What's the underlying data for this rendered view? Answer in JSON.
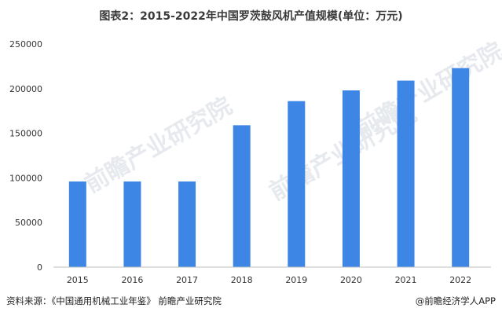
{
  "title": "图表2：2015-2022年中国罗茨鼓风机产值规模(单位：万元)",
  "footer": {
    "source": "资料来源：《中国通用机械工业年鉴》 前瞻产业研究院",
    "credit": "@前瞻经济学人APP"
  },
  "watermark": {
    "text": "前瞻产业研究院"
  },
  "chart_data": {
    "type": "bar",
    "title": "图表2：2015-2022年中国罗茨鼓风机产值规模(单位：万元)",
    "categories": [
      "2015",
      "2016",
      "2017",
      "2018",
      "2019",
      "2020",
      "2021",
      "2022"
    ],
    "values": [
      96000,
      96000,
      96000,
      159000,
      186000,
      198000,
      209000,
      223000
    ],
    "ylim": [
      0,
      250000
    ],
    "yticks": [
      "0",
      "50000",
      "100000",
      "150000",
      "200000",
      "250000"
    ],
    "xlabel": "",
    "ylabel": "",
    "grid": false,
    "bar_color": "#3d86e6"
  }
}
